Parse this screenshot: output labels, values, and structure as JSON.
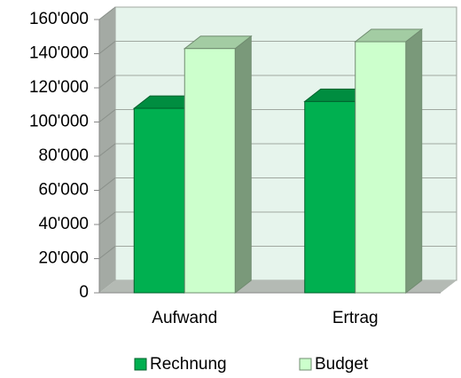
{
  "chart_data": {
    "type": "bar3d",
    "categories": [
      "Aufwand",
      "Ertrag"
    ],
    "series": [
      {
        "name": "Rechnung",
        "color": "#00b050",
        "values": [
          108000,
          112000
        ]
      },
      {
        "name": "Budget",
        "color": "#ccffcc",
        "values": [
          143000,
          147000
        ]
      }
    ],
    "ylim": [
      0,
      160000
    ],
    "yticks": [
      0,
      {
        "value": 20000,
        "label": "20'000"
      },
      {
        "value": 40000,
        "label": "40'000"
      },
      {
        "value": 60000,
        "label": "60'000"
      },
      {
        "value": 80000,
        "label": "80'000"
      },
      {
        "value": 100000,
        "label": "100'000"
      },
      {
        "value": 120000,
        "label": "120'000"
      },
      {
        "value": 140000,
        "label": "140'000"
      },
      {
        "value": 160000,
        "label": "160'000"
      }
    ],
    "grid": true,
    "legend": "bottom"
  }
}
